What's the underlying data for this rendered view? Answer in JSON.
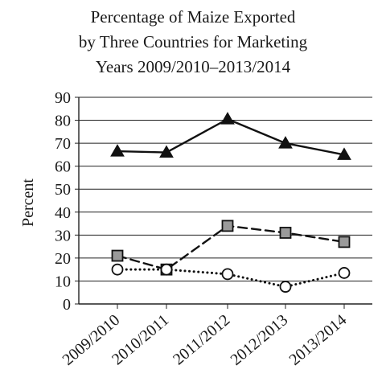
{
  "chart_data": {
    "type": "line",
    "title_lines": [
      "Percentage of Maize Exported",
      "by Three Countries for Marketing",
      "Years 2009/2010–2013/2014"
    ],
    "ylabel": "Percent",
    "xlabel": "",
    "categories": [
      "2009/2010",
      "2010/2011",
      "2011/2012",
      "2012/2013",
      "2013/2014"
    ],
    "ylim": [
      0,
      90
    ],
    "yticks": [
      0,
      10,
      20,
      30,
      40,
      50,
      60,
      70,
      80,
      90
    ],
    "grid": true,
    "legend": "none",
    "series": [
      {
        "marker": "triangle",
        "line": "solid",
        "fill": "#111111",
        "values": [
          66.5,
          66,
          80.5,
          70,
          65
        ]
      },
      {
        "marker": "square",
        "line": "dashed",
        "fill": "#9a9a9a",
        "values": [
          21,
          15,
          34,
          31,
          27
        ]
      },
      {
        "marker": "circle",
        "line": "dotted",
        "fill": "#ffffff",
        "values": [
          15,
          15,
          13,
          7.5,
          13.5
        ]
      }
    ]
  }
}
